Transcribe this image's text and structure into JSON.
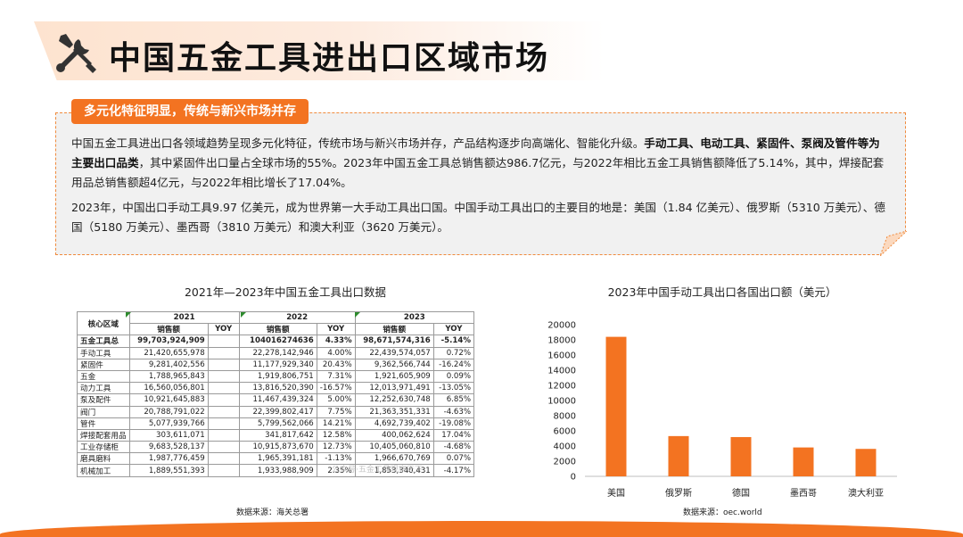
{
  "page": {
    "title": "中国五金工具进出口区域市场",
    "tag": "多元化特征明显，传统与新兴市场并存",
    "paragraph1": {
      "lead": "中国五金工具进出口各领域趋势呈现多元化特征，传统市场与新兴市场并存，产品结构逐步向高端化、智能化升级。",
      "bold": "手动工具、电动工具、紧固件、泵阀及管件等为主要出口品类",
      "tail": "，其中紧固件出口量占全球市场的55%。2023年中国五金工具总销售额达986.7亿元，与2022年相比五金工具销售额降低了5.14%，其中，焊接配套用品总销售额超4亿元，与2022年相比增长了17.04%。"
    },
    "paragraph2": "2023年，中国出口手动工具9.97 亿美元，成为世界第一大手动工具出口国。中国手动工具出口的主要目的地是：美国（1.84 亿美元）、俄罗斯（5310 万美元）、德国（5180 万美元）、墨西哥（3810 万美元）和澳大利亚（3620 万美元）。"
  },
  "table": {
    "caption": "2021年—2023年中国五金工具出口数据",
    "corner": "核心区域",
    "years": [
      "2021",
      "2022",
      "2023"
    ],
    "subheaders": [
      "销售额",
      "YOY"
    ],
    "rows": [
      {
        "label": "五金工具总",
        "v": [
          "99,703,924,909",
          "",
          "104016274636",
          "4.33%",
          "98,671,574,316",
          "-5.14%"
        ]
      },
      {
        "label": "手动工具",
        "v": [
          "21,420,655,978",
          "",
          "22,278,142,946",
          "4.00%",
          "22,439,574,057",
          "0.72%"
        ]
      },
      {
        "label": "紧固件",
        "v": [
          "9,281,402,556",
          "",
          "11,177,929,340",
          "20.43%",
          "9,362,566,744",
          "-16.24%"
        ]
      },
      {
        "label": "五金",
        "v": [
          "1,788,965,843",
          "",
          "1,919,806,751",
          "7.31%",
          "1,921,605,909",
          "0.09%"
        ]
      },
      {
        "label": "动力工具",
        "v": [
          "16,560,056,801",
          "",
          "13,816,520,390",
          "-16.57%",
          "12,013,971,491",
          "-13.05%"
        ]
      },
      {
        "label": "泵及配件",
        "v": [
          "10,921,645,883",
          "",
          "11,467,439,324",
          "5.00%",
          "12,252,630,748",
          "6.85%"
        ]
      },
      {
        "label": "阀门",
        "v": [
          "20,788,791,022",
          "",
          "22,399,802,417",
          "7.75%",
          "21,363,351,331",
          "-4.63%"
        ]
      },
      {
        "label": "管件",
        "v": [
          "5,077,939,766",
          "",
          "5,799,562,066",
          "14.21%",
          "4,692,739,402",
          "-19.08%"
        ]
      },
      {
        "label": "焊接配套用品",
        "v": [
          "303,611,071",
          "",
          "341,817,642",
          "12.58%",
          "400,062,624",
          "17.04%"
        ]
      },
      {
        "label": "工业存储柜",
        "v": [
          "9,683,528,137",
          "",
          "10,915,873,670",
          "12.73%",
          "10,405,060,810",
          "-4.68%"
        ]
      },
      {
        "label": "磨具磨料",
        "v": [
          "1,987,776,459",
          "",
          "1,965,391,181",
          "-1.13%",
          "1,966,670,769",
          "0.07%"
        ]
      },
      {
        "label": "机械加工",
        "v": [
          "1,889,551,393",
          "",
          "1,933,988,909",
          "2.35%",
          "1,853,340,431",
          "-4.17%"
        ]
      }
    ],
    "source": "数据来源：海关总署"
  },
  "watermark": "公众号·五金工具观察天下",
  "chart_data": {
    "type": "bar",
    "title": "2023年中国手动工具出口各国出口额（美元）",
    "categories": [
      "美国",
      "俄罗斯",
      "德国",
      "墨西哥",
      "澳大利亚"
    ],
    "values": [
      18400,
      5310,
      5180,
      3810,
      3620
    ],
    "ylim": [
      0,
      20000
    ],
    "yticks": [
      0,
      2000,
      4000,
      6000,
      8000,
      10000,
      12000,
      14000,
      16000,
      18000,
      20000
    ],
    "xlabel": "",
    "ylabel": "",
    "grid": false,
    "bar_color": "#f37321",
    "source": "数据来源：oec.world"
  },
  "colors": {
    "accent": "#f37321",
    "box_bg": "#f1f1f1",
    "title_band": "#fde3cf"
  },
  "icons": {
    "title": "tools-icon"
  }
}
